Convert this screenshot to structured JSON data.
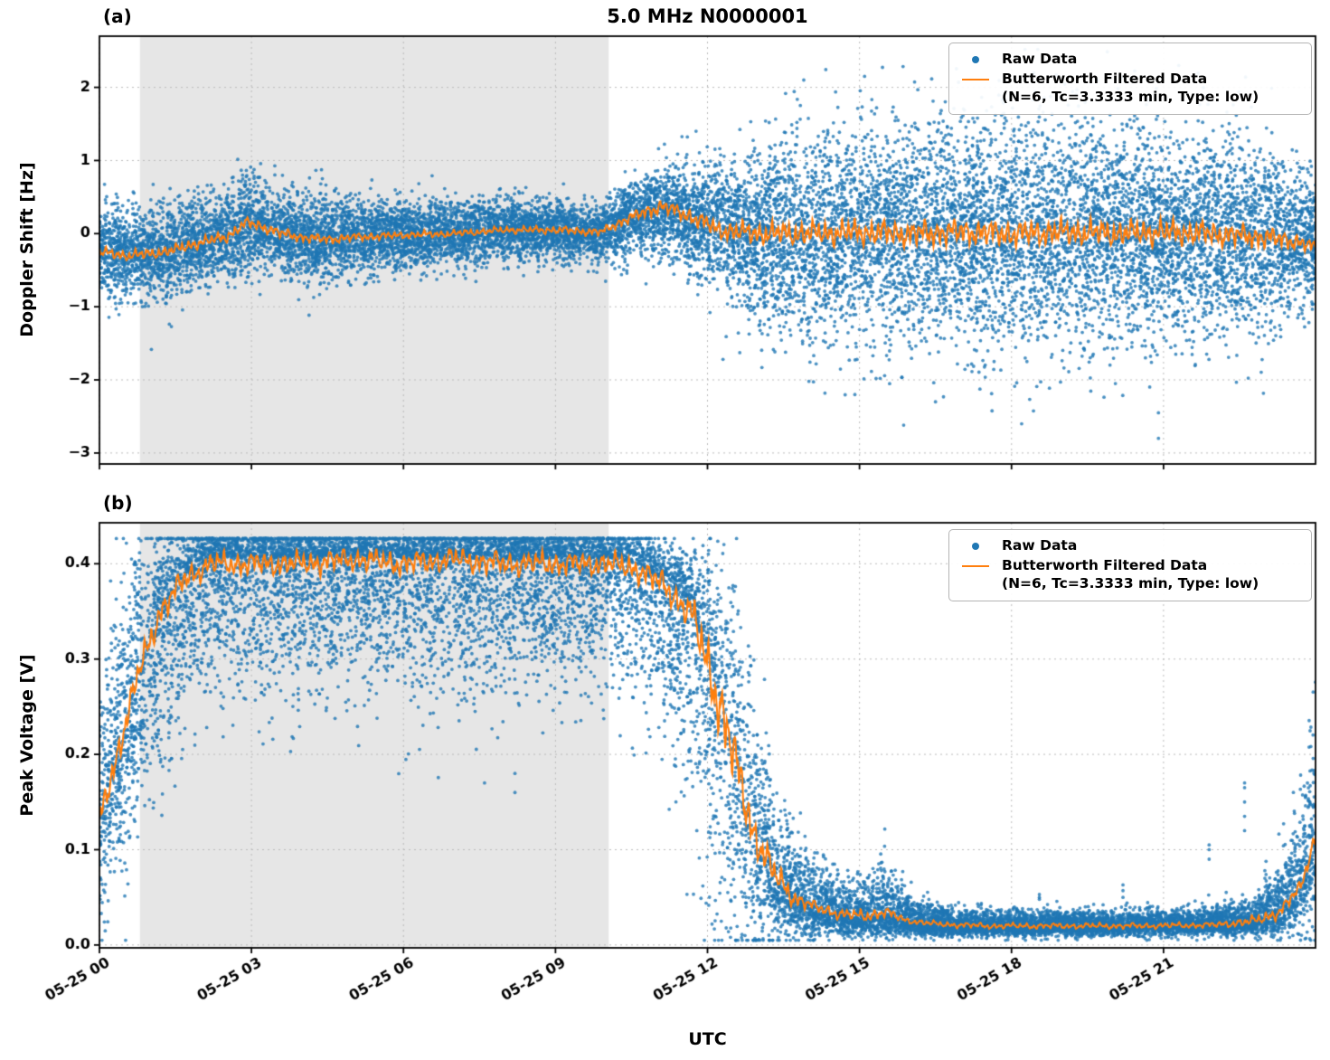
{
  "figure": {
    "title": "5.0 MHz N0000001",
    "xlabel": "UTC",
    "background": "#ffffff",
    "colors": {
      "raw": "#1f77b4",
      "filtered": "#ff7f0e",
      "shade": "#e6e6e6",
      "grid": "#bbbbbb",
      "spine": "#000000"
    }
  },
  "legend": {
    "raw_label": "Raw Data",
    "filtered_label": "Butterworth Filtered Data",
    "filtered_sublabel": "(N=6, Tc=3.3333 min, Type: low)"
  },
  "chart_data": [
    {
      "id": "a",
      "type": "scatter",
      "panel_label": "(a)",
      "title": "5.0 MHz N0000001",
      "ylabel": "Doppler Shift [Hz]",
      "ylim": [
        -3.15,
        2.7
      ],
      "xlim": [
        0,
        24
      ],
      "yticks": {
        "values": [
          2,
          1,
          0,
          -1,
          -2,
          -3
        ],
        "labels": [
          "2",
          "1",
          "0",
          "−1",
          "−2",
          "−3"
        ]
      },
      "xticks": {
        "values": [
          0,
          3,
          6,
          9,
          12,
          15,
          18,
          21
        ],
        "labels": [
          "05-25 00",
          "05-25 03",
          "05-25 06",
          "05-25 09",
          "05-25 12",
          "05-25 15",
          "05-25 18",
          "05-25 21"
        ],
        "show_labels": false
      },
      "shaded_region": [
        0.8,
        10.05
      ],
      "raw": {
        "name": "Raw Data",
        "n": 16000,
        "seed": 42,
        "clip": [
          -2.9,
          2.52
        ],
        "keyframes": [
          [
            0.0,
            -0.22,
            0.3,
            0.3
          ],
          [
            0.7,
            -0.3,
            0.32,
            0.32
          ],
          [
            1.5,
            -0.2,
            0.3,
            0.3
          ],
          [
            2.2,
            -0.1,
            0.3,
            0.3
          ],
          [
            2.9,
            0.12,
            0.34,
            0.34
          ],
          [
            3.4,
            0.05,
            0.3,
            0.3
          ],
          [
            4.2,
            -0.08,
            0.3,
            0.3
          ],
          [
            5.0,
            -0.05,
            0.26,
            0.26
          ],
          [
            6.0,
            -0.02,
            0.24,
            0.24
          ],
          [
            7.0,
            0.0,
            0.22,
            0.22
          ],
          [
            8.0,
            0.04,
            0.22,
            0.22
          ],
          [
            9.0,
            0.04,
            0.2,
            0.2
          ],
          [
            9.9,
            0.0,
            0.2,
            0.2
          ],
          [
            10.4,
            0.18,
            0.24,
            0.24
          ],
          [
            11.0,
            0.33,
            0.26,
            0.26
          ],
          [
            11.5,
            0.28,
            0.34,
            0.34
          ],
          [
            12.0,
            0.1,
            0.42,
            0.42
          ],
          [
            12.6,
            0.02,
            0.5,
            0.5
          ],
          [
            13.2,
            0.02,
            0.62,
            0.62
          ],
          [
            14.0,
            0.0,
            0.68,
            0.68
          ],
          [
            15.0,
            0.0,
            0.72,
            0.72
          ],
          [
            16.0,
            0.02,
            0.72,
            0.72
          ],
          [
            17.0,
            0.0,
            0.75,
            0.75
          ],
          [
            18.0,
            0.0,
            0.75,
            0.75
          ],
          [
            19.0,
            0.02,
            0.75,
            0.75
          ],
          [
            20.0,
            0.0,
            0.73,
            0.73
          ],
          [
            21.0,
            0.0,
            0.72,
            0.72
          ],
          [
            22.0,
            0.0,
            0.7,
            0.7
          ],
          [
            23.0,
            -0.05,
            0.62,
            0.62
          ],
          [
            23.6,
            -0.1,
            0.5,
            0.5
          ],
          [
            24.0,
            -0.15,
            0.42,
            0.42
          ]
        ]
      },
      "outlier_columns": [
        {
          "t": 16.5,
          "values": [
            -2.3
          ]
        },
        {
          "t": 18.2,
          "values": [
            -2.6
          ]
        },
        {
          "t": 20.9,
          "values": [
            -2.8,
            -2.45
          ]
        },
        {
          "t": 13.9,
          "values": [
            2.1
          ]
        },
        {
          "t": 21.3,
          "values": [
            2.3
          ]
        },
        {
          "t": 15.1,
          "values": [
            2.15
          ]
        }
      ],
      "filtered": {
        "name": "Butterworth Filtered Data (N=6, Tc=3.3333 min, Type: low)",
        "line_clip": [
          -0.58,
          0.5
        ],
        "base": [
          [
            0.0,
            -0.25
          ],
          [
            0.5,
            -0.3
          ],
          [
            1.0,
            -0.28
          ],
          [
            1.5,
            -0.22
          ],
          [
            2.0,
            -0.12
          ],
          [
            2.5,
            -0.05
          ],
          [
            2.9,
            0.15
          ],
          [
            3.2,
            0.1
          ],
          [
            3.6,
            0.0
          ],
          [
            4.0,
            -0.05
          ],
          [
            4.5,
            -0.08
          ],
          [
            5.0,
            -0.05
          ],
          [
            6.0,
            -0.02
          ],
          [
            7.0,
            0.0
          ],
          [
            8.0,
            0.05
          ],
          [
            9.0,
            0.05
          ],
          [
            9.9,
            0.02
          ],
          [
            10.4,
            0.2
          ],
          [
            10.8,
            0.3
          ],
          [
            11.1,
            0.38
          ],
          [
            11.4,
            0.3
          ],
          [
            11.8,
            0.2
          ],
          [
            12.2,
            0.05
          ],
          [
            13.0,
            0.0
          ],
          [
            14.0,
            0.0
          ],
          [
            15.0,
            0.02
          ],
          [
            16.0,
            0.0
          ],
          [
            17.0,
            0.03
          ],
          [
            18.0,
            0.0
          ],
          [
            19.0,
            0.02
          ],
          [
            20.0,
            0.0
          ],
          [
            21.0,
            0.02
          ],
          [
            22.0,
            0.0
          ],
          [
            23.0,
            -0.05
          ],
          [
            23.6,
            -0.1
          ],
          [
            24.0,
            -0.2
          ]
        ],
        "amp": [
          [
            0.0,
            0.07
          ],
          [
            2.0,
            0.08
          ],
          [
            4.0,
            0.07
          ],
          [
            6.0,
            0.05
          ],
          [
            8.0,
            0.05
          ],
          [
            10.0,
            0.06
          ],
          [
            11.0,
            0.1
          ],
          [
            12.0,
            0.12
          ],
          [
            13.0,
            0.16
          ],
          [
            15.0,
            0.18
          ],
          [
            18.0,
            0.18
          ],
          [
            21.0,
            0.18
          ],
          [
            23.0,
            0.15
          ],
          [
            24.0,
            0.1
          ]
        ],
        "wiggle": [
          [
            54,
            1.3,
            0.5
          ],
          [
            23,
            4.1,
            0.28
          ],
          [
            96,
            2.2,
            0.22
          ],
          [
            151,
            0.7,
            0.15
          ],
          [
            9,
            0.3,
            0.2
          ]
        ]
      }
    },
    {
      "id": "b",
      "type": "scatter",
      "panel_label": "(b)",
      "ylabel": "Peak Voltage [V]",
      "ylim": [
        -0.003,
        0.443
      ],
      "xlim": [
        0,
        24
      ],
      "yticks": {
        "values": [
          0.4,
          0.3,
          0.2,
          0.1,
          0.0
        ],
        "labels": [
          "0.4",
          "0.3",
          "0.2",
          "0.1",
          "0.0"
        ]
      },
      "xticks": {
        "values": [
          0,
          3,
          6,
          9,
          12,
          15,
          18,
          21
        ],
        "labels": [
          "05-25 00",
          "05-25 03",
          "05-25 06",
          "05-25 09",
          "05-25 12",
          "05-25 15",
          "05-25 18",
          "05-25 21"
        ],
        "show_labels": true
      },
      "shaded_region": [
        0.8,
        10.05
      ],
      "raw": {
        "name": "Raw Data",
        "n": 16000,
        "seed": 1337,
        "clip": [
          0.005,
          0.4265
        ],
        "keyframes": [
          [
            0.0,
            0.14,
            0.07,
            0.05
          ],
          [
            0.4,
            0.2,
            0.08,
            0.06
          ],
          [
            0.8,
            0.28,
            0.07,
            0.07
          ],
          [
            1.2,
            0.34,
            0.05,
            0.08
          ],
          [
            1.7,
            0.385,
            0.03,
            0.07
          ],
          [
            2.2,
            0.405,
            0.018,
            0.06
          ],
          [
            3.0,
            0.407,
            0.016,
            0.07
          ],
          [
            4.0,
            0.405,
            0.017,
            0.07
          ],
          [
            5.0,
            0.407,
            0.016,
            0.065
          ],
          [
            6.0,
            0.406,
            0.017,
            0.07
          ],
          [
            7.0,
            0.406,
            0.016,
            0.07
          ],
          [
            8.0,
            0.405,
            0.017,
            0.065
          ],
          [
            9.0,
            0.406,
            0.016,
            0.06
          ],
          [
            10.0,
            0.405,
            0.017,
            0.06
          ],
          [
            10.6,
            0.4,
            0.018,
            0.07
          ],
          [
            11.2,
            0.38,
            0.02,
            0.08
          ],
          [
            11.7,
            0.35,
            0.03,
            0.1
          ],
          [
            12.1,
            0.29,
            0.06,
            0.12
          ],
          [
            12.5,
            0.2,
            0.09,
            0.1
          ],
          [
            12.9,
            0.12,
            0.07,
            0.06
          ],
          [
            13.3,
            0.07,
            0.05,
            0.035
          ],
          [
            13.7,
            0.05,
            0.035,
            0.02
          ],
          [
            14.2,
            0.035,
            0.025,
            0.012
          ],
          [
            14.7,
            0.03,
            0.02,
            0.01
          ],
          [
            15.1,
            0.028,
            0.02,
            0.009
          ],
          [
            15.5,
            0.032,
            0.03,
            0.012
          ],
          [
            15.9,
            0.025,
            0.015,
            0.008
          ],
          [
            16.5,
            0.021,
            0.01,
            0.006
          ],
          [
            17.5,
            0.02,
            0.008,
            0.005
          ],
          [
            19.0,
            0.02,
            0.008,
            0.005
          ],
          [
            20.5,
            0.02,
            0.008,
            0.005
          ],
          [
            22.0,
            0.021,
            0.009,
            0.005
          ],
          [
            22.8,
            0.025,
            0.012,
            0.007
          ],
          [
            23.3,
            0.035,
            0.025,
            0.012
          ],
          [
            23.7,
            0.06,
            0.045,
            0.025
          ],
          [
            24.0,
            0.11,
            0.08,
            0.04
          ]
        ]
      },
      "outlier_columns": [
        {
          "t": 18.55,
          "values": [
            0.048,
            0.053,
            0.05
          ]
        },
        {
          "t": 20.2,
          "values": [
            0.05,
            0.057,
            0.063
          ]
        },
        {
          "t": 21.9,
          "values": [
            0.09,
            0.1,
            0.105
          ]
        },
        {
          "t": 22.6,
          "values": [
            0.12,
            0.135,
            0.15,
            0.165,
            0.17
          ]
        },
        {
          "t": 23.0,
          "values": [
            0.07,
            0.078
          ]
        },
        {
          "t": 8.2,
          "values": [
            0.16,
            0.18
          ]
        },
        {
          "t": 7.6,
          "values": [
            0.17
          ]
        }
      ],
      "filtered": {
        "name": "Butterworth Filtered Data (N=6, Tc=3.3333 min, Type: low)",
        "line_clip": [
          0.012,
          0.415
        ],
        "base": [
          [
            0.0,
            0.13
          ],
          [
            0.4,
            0.21
          ],
          [
            0.8,
            0.29
          ],
          [
            1.2,
            0.35
          ],
          [
            1.7,
            0.385
          ],
          [
            2.2,
            0.4
          ],
          [
            3.0,
            0.4
          ],
          [
            4.0,
            0.4
          ],
          [
            5.0,
            0.405
          ],
          [
            6.0,
            0.4
          ],
          [
            7.0,
            0.405
          ],
          [
            8.0,
            0.4
          ],
          [
            9.0,
            0.4
          ],
          [
            10.0,
            0.4
          ],
          [
            10.6,
            0.395
          ],
          [
            11.2,
            0.375
          ],
          [
            11.7,
            0.345
          ],
          [
            12.1,
            0.28
          ],
          [
            12.5,
            0.2
          ],
          [
            12.9,
            0.12
          ],
          [
            13.3,
            0.075
          ],
          [
            13.7,
            0.05
          ],
          [
            14.2,
            0.038
          ],
          [
            14.7,
            0.032
          ],
          [
            15.1,
            0.03
          ],
          [
            15.5,
            0.035
          ],
          [
            15.9,
            0.026
          ],
          [
            16.5,
            0.022
          ],
          [
            17.5,
            0.02
          ],
          [
            19.0,
            0.02
          ],
          [
            20.5,
            0.02
          ],
          [
            22.0,
            0.021
          ],
          [
            22.8,
            0.025
          ],
          [
            23.3,
            0.035
          ],
          [
            23.7,
            0.06
          ],
          [
            24.0,
            0.115
          ]
        ],
        "amp": [
          [
            0.0,
            0.015
          ],
          [
            1.0,
            0.015
          ],
          [
            2.0,
            0.012
          ],
          [
            10.0,
            0.012
          ],
          [
            11.5,
            0.015
          ],
          [
            12.3,
            0.035
          ],
          [
            13.0,
            0.02
          ],
          [
            14.0,
            0.006
          ],
          [
            15.5,
            0.006
          ],
          [
            16.0,
            0.003
          ],
          [
            22.0,
            0.003
          ],
          [
            23.0,
            0.006
          ],
          [
            24.0,
            0.008
          ]
        ],
        "wiggle": [
          [
            48,
            2.7,
            0.5
          ],
          [
            21,
            0.9,
            0.3
          ],
          [
            88,
            5.1,
            0.22
          ],
          [
            140,
            3.3,
            0.15
          ],
          [
            8,
            1.8,
            0.25
          ]
        ]
      }
    }
  ]
}
